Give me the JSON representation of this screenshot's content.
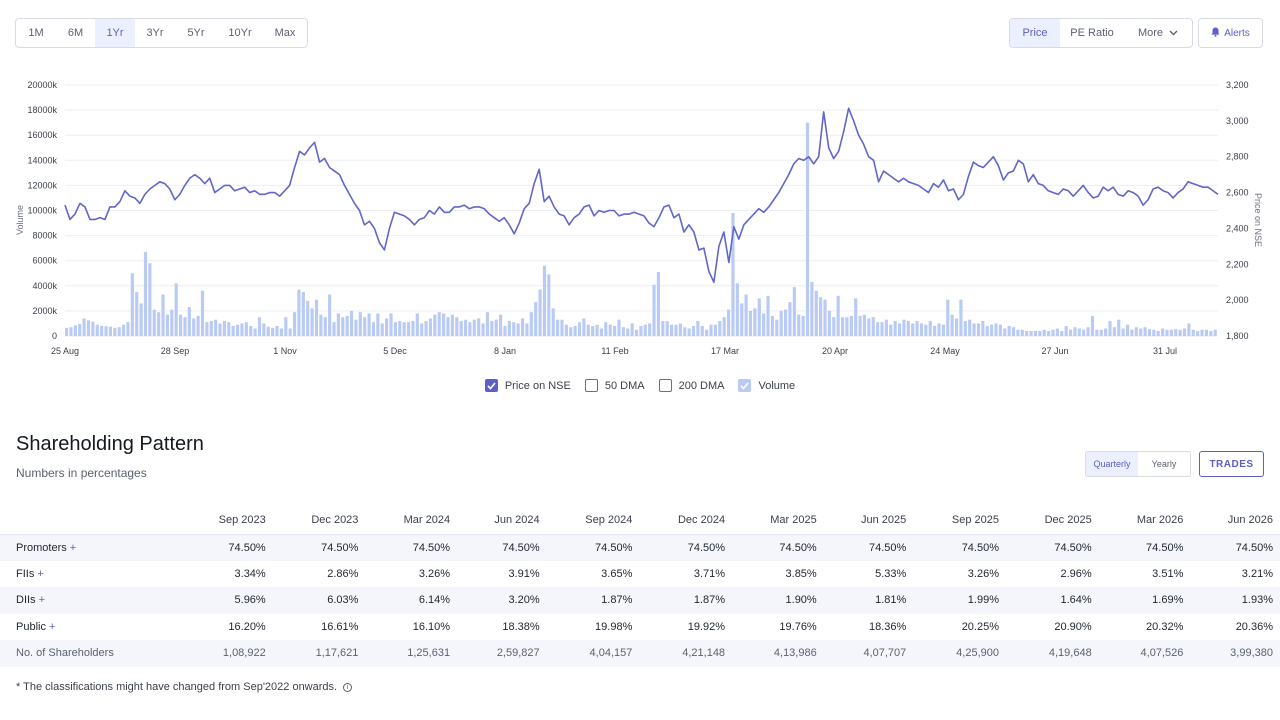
{
  "toolbar": {
    "ranges": [
      "1M",
      "6M",
      "1Yr",
      "3Yr",
      "5Yr",
      "10Yr",
      "Max"
    ],
    "active_range": "1Yr",
    "views": [
      "Price",
      "PE Ratio",
      "More"
    ],
    "active_view": "Price",
    "alerts_label": "Alerts"
  },
  "chart_data": {
    "type": "line",
    "y_left": {
      "label": "Volume",
      "ticks": [
        "0",
        "2000k",
        "4000k",
        "6000k",
        "8000k",
        "10000k",
        "12000k",
        "14000k",
        "16000k",
        "18000k",
        "20000k"
      ],
      "range": [
        0,
        20000
      ]
    },
    "y_right": {
      "label": "Price on NSE",
      "ticks": [
        "1,800",
        "2,000",
        "2,200",
        "2,400",
        "2,600",
        "2,800",
        "3,000",
        "3,200"
      ],
      "range": [
        1800,
        3200
      ]
    },
    "x_ticks": [
      "25 Aug",
      "28 Sep",
      "1 Nov",
      "5 Dec",
      "8 Jan",
      "11 Feb",
      "17 Mar",
      "20 Apr",
      "24 May",
      "27 Jun",
      "31 Jul"
    ],
    "price_series": {
      "name": "Price on NSE",
      "color": "#6166c9",
      "values": [
        2530,
        2450,
        2480,
        2540,
        2520,
        2450,
        2450,
        2460,
        2450,
        2520,
        2520,
        2550,
        2610,
        2580,
        2570,
        2540,
        2590,
        2620,
        2640,
        2660,
        2650,
        2620,
        2560,
        2590,
        2640,
        2680,
        2700,
        2680,
        2650,
        2680,
        2600,
        2620,
        2640,
        2640,
        2610,
        2620,
        2630,
        2600,
        2610,
        2590,
        2590,
        2600,
        2600,
        2580,
        2610,
        2640,
        2740,
        2830,
        2810,
        2850,
        2880,
        2770,
        2790,
        2740,
        2720,
        2700,
        2640,
        2590,
        2540,
        2500,
        2420,
        2440,
        2400,
        2320,
        2280,
        2400,
        2490,
        2480,
        2470,
        2450,
        2420,
        2450,
        2460,
        2500,
        2480,
        2520,
        2490,
        2490,
        2520,
        2520,
        2530,
        2510,
        2520,
        2520,
        2510,
        2480,
        2460,
        2440,
        2460,
        2420,
        2370,
        2430,
        2510,
        2540,
        2650,
        2730,
        2550,
        2580,
        2520,
        2480,
        2470,
        2420,
        2460,
        2480,
        2520,
        2530,
        2470,
        2500,
        2490,
        2500,
        2500,
        2470,
        2480,
        2480,
        2490,
        2480,
        2470,
        2430,
        2410,
        2460,
        2520,
        2530,
        2460,
        2480,
        2380,
        2420,
        2380,
        2280,
        2290,
        2160,
        2100,
        2300,
        2380,
        2210,
        2410,
        2340,
        2420,
        2450,
        2480,
        2510,
        2490,
        2520,
        2560,
        2600,
        2650,
        2700,
        2760,
        2790,
        2780,
        2800,
        2760,
        2800,
        3050,
        2850,
        2790,
        2830,
        2940,
        3070,
        3000,
        2920,
        2870,
        2800,
        2780,
        2660,
        2720,
        2700,
        2680,
        2660,
        2680,
        2660,
        2650,
        2640,
        2620,
        2600,
        2650,
        2630,
        2670,
        2610,
        2620,
        2560,
        2590,
        2690,
        2770,
        2750,
        2740,
        2770,
        2800,
        2750,
        2670,
        2710,
        2720,
        2780,
        2760,
        2660,
        2700,
        2650,
        2640,
        2610,
        2600,
        2590,
        2620,
        2610,
        2580,
        2610,
        2640,
        2600,
        2570,
        2580,
        2630,
        2610,
        2630,
        2590,
        2580,
        2610,
        2600,
        2580,
        2530,
        2560,
        2620,
        2630,
        2610,
        2600,
        2570,
        2600,
        2620,
        2660,
        2650,
        2640,
        2630,
        2630,
        2610,
        2590
      ]
    },
    "volume_series": {
      "name": "Volume",
      "color": "#b9cbf5",
      "values": [
        650,
        700,
        850,
        950,
        1400,
        1250,
        1150,
        900,
        800,
        780,
        750,
        650,
        700,
        900,
        1100,
        5000,
        3500,
        2600,
        6700,
        5800,
        2100,
        1900,
        3300,
        1700,
        2100,
        4200,
        1700,
        1500,
        2300,
        1400,
        1600,
        3600,
        1100,
        1200,
        1300,
        1000,
        1200,
        1100,
        800,
        900,
        1000,
        1100,
        800,
        600,
        1500,
        1000,
        750,
        650,
        800,
        600,
        1500,
        600,
        1900,
        3700,
        3500,
        2800,
        2200,
        2900,
        1700,
        1500,
        3300,
        1100,
        1800,
        1500,
        1600,
        2000,
        1300,
        1900,
        1500,
        1800,
        1100,
        1800,
        1000,
        1400,
        1800,
        1100,
        1200,
        1100,
        1100,
        1200,
        1800,
        1000,
        1200,
        1400,
        1700,
        1900,
        1800,
        1500,
        1700,
        1500,
        1200,
        1300,
        1100,
        1300,
        1400,
        1000,
        1900,
        1200,
        1300,
        1700,
        800,
        1200,
        1100,
        1000,
        1400,
        1000,
        1900,
        2700,
        3700,
        5600,
        4900,
        2200,
        1300,
        1300,
        900,
        700,
        800,
        1100,
        1400,
        900,
        800,
        900,
        600,
        1100,
        900,
        800,
        1300,
        700,
        600,
        1000,
        500,
        800,
        900,
        1000,
        4100,
        5100,
        1200,
        1200,
        900,
        900,
        1000,
        700,
        600,
        800,
        1200,
        800,
        500,
        900,
        900,
        1200,
        1500,
        2100,
        9800,
        4200,
        2600,
        3300,
        2000,
        2200,
        3000,
        1800,
        3200,
        1600,
        1300,
        2000,
        2100,
        2700,
        3900,
        1700,
        1600,
        17000,
        4300,
        3600,
        3100,
        2900,
        2000,
        1500,
        3200,
        1500,
        1500,
        1600,
        3000,
        1600,
        1700,
        1400,
        1500,
        1100,
        1100,
        1300,
        900,
        1200,
        1000,
        1300,
        1200,
        1000,
        1200,
        1000,
        900,
        1200,
        800,
        1000,
        900,
        2900,
        1700,
        1400,
        2900,
        1200,
        1300,
        1000,
        1000,
        1200,
        800,
        900,
        1000,
        900,
        600,
        800,
        700,
        500,
        500,
        400,
        400,
        400,
        400,
        500,
        400,
        500,
        600,
        400,
        800,
        500,
        700,
        600,
        500,
        700,
        1600,
        500,
        500,
        600,
        1200,
        700,
        1300,
        600,
        900,
        500,
        700,
        600,
        700,
        550,
        500,
        400,
        600,
        500,
        500,
        550,
        500,
        600,
        1000,
        500,
        400,
        500,
        500,
        400,
        500
      ]
    },
    "legend": [
      {
        "label": "Price on NSE",
        "checked": true,
        "color": "#5b5fc7"
      },
      {
        "label": "50 DMA",
        "checked": false
      },
      {
        "label": "200 DMA",
        "checked": false
      },
      {
        "label": "Volume",
        "checked": true,
        "color": "#b9cbf5"
      }
    ]
  },
  "shareholding": {
    "title": "Shareholding Pattern",
    "subtitle": "Numbers in percentages",
    "period_tabs": [
      "Quarterly",
      "Yearly"
    ],
    "active_period": "Quarterly",
    "trades_label": "TRADES",
    "columns": [
      "Sep 2023",
      "Dec 2023",
      "Mar 2024",
      "Jun 2024",
      "Sep 2024",
      "Dec 2024",
      "Mar 2025",
      "Jun 2025",
      "Sep 2025",
      "Dec 2025",
      "Mar 2026",
      "Jun 2026"
    ],
    "rows": [
      {
        "label": "Promoters",
        "expandable": true,
        "values": [
          "74.50%",
          "74.50%",
          "74.50%",
          "74.50%",
          "74.50%",
          "74.50%",
          "74.50%",
          "74.50%",
          "74.50%",
          "74.50%",
          "74.50%",
          "74.50%"
        ]
      },
      {
        "label": "FIIs",
        "expandable": true,
        "values": [
          "3.34%",
          "2.86%",
          "3.26%",
          "3.91%",
          "3.65%",
          "3.71%",
          "3.85%",
          "5.33%",
          "3.26%",
          "2.96%",
          "3.51%",
          "3.21%"
        ]
      },
      {
        "label": "DIIs",
        "expandable": true,
        "values": [
          "5.96%",
          "6.03%",
          "6.14%",
          "3.20%",
          "1.87%",
          "1.87%",
          "1.90%",
          "1.81%",
          "1.99%",
          "1.64%",
          "1.69%",
          "1.93%"
        ]
      },
      {
        "label": "Public",
        "expandable": true,
        "values": [
          "16.20%",
          "16.61%",
          "16.10%",
          "18.38%",
          "19.98%",
          "19.92%",
          "19.76%",
          "18.36%",
          "20.25%",
          "20.90%",
          "20.32%",
          "20.36%"
        ]
      },
      {
        "label": "No. of Shareholders",
        "expandable": false,
        "values": [
          "1,08,922",
          "1,17,621",
          "1,25,631",
          "2,59,827",
          "4,04,157",
          "4,21,148",
          "4,13,986",
          "4,07,707",
          "4,25,900",
          "4,19,648",
          "4,07,526",
          "3,99,380"
        ]
      }
    ],
    "expand_symbol": "+",
    "footnote": "* The classifications might have changed from Sep'2022 onwards.",
    "info_symbol": "i"
  }
}
